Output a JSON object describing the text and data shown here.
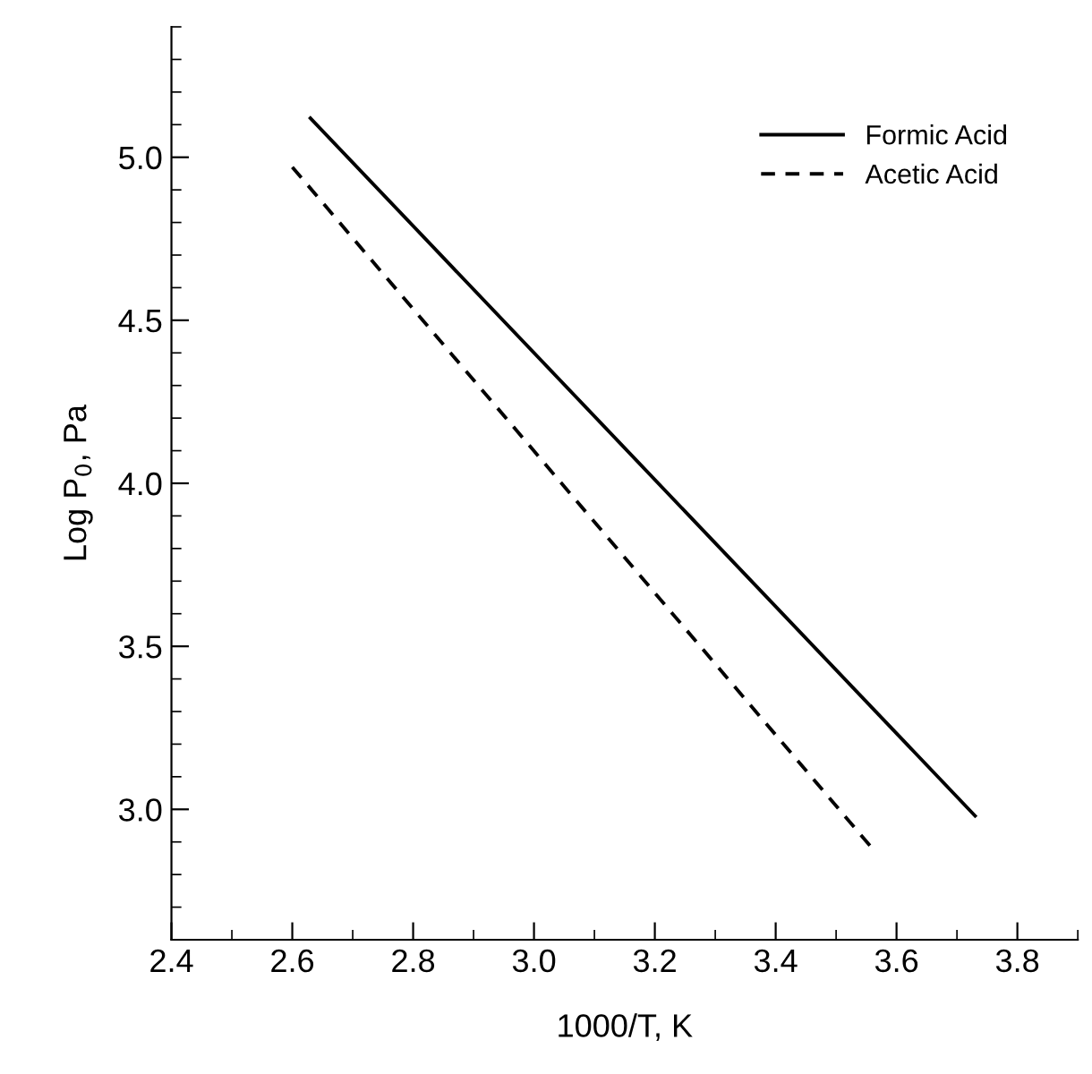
{
  "chart_data": {
    "type": "line",
    "xlabel": "1000/T, K",
    "ylabel": "Log P$_{0}$, Pa",
    "xlim": [
      2.4,
      3.9
    ],
    "xticks": [
      {
        "value": 2.4,
        "label": "2.4"
      },
      {
        "value": 2.6,
        "label": "2.6"
      },
      {
        "value": 2.8,
        "label": "2.8"
      },
      {
        "value": 3.0,
        "label": "3.0"
      },
      {
        "value": 3.2,
        "label": "3.2"
      },
      {
        "value": 3.4,
        "label": "3.4"
      },
      {
        "value": 3.6,
        "label": "3.6"
      },
      {
        "value": 3.8,
        "label": "3.8"
      }
    ],
    "ylim": [
      2.6,
      5.4
    ],
    "yticks": [
      {
        "value": 3.0,
        "label": "3.0"
      },
      {
        "value": 3.5,
        "label": "3.5"
      },
      {
        "value": 4.0,
        "label": "4.0"
      },
      {
        "value": 4.5,
        "label": "4.5"
      },
      {
        "value": 5.0,
        "label": "5.0"
      }
    ],
    "grid": false,
    "legend": "top right",
    "marker": "none",
    "series": [
      {
        "name": "Formic Acid",
        "color": "#000000",
        "line_style": "solid",
        "x": [
          2.63,
          3.73
        ],
        "values": [
          5.12,
          2.98
        ]
      },
      {
        "name": "Acetic Acid",
        "color": "#000000",
        "line_style": "dashed",
        "x": [
          2.6,
          3.56
        ],
        "values": [
          4.97,
          2.88
        ]
      }
    ]
  }
}
